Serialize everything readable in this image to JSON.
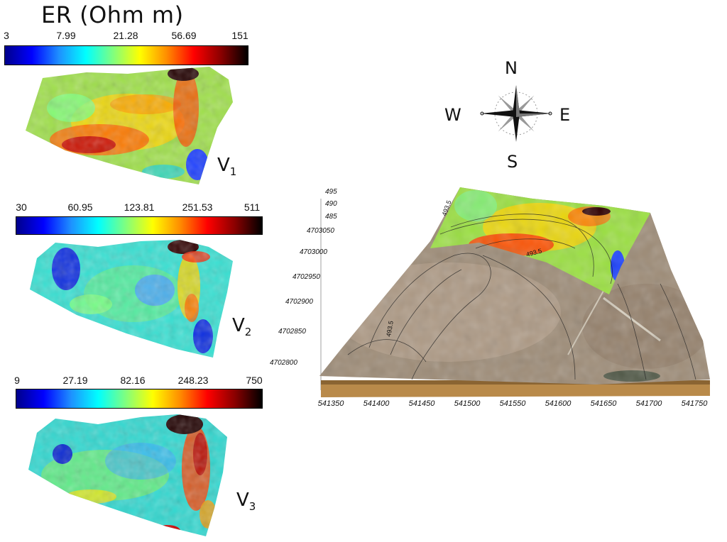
{
  "legend_title": "ER (Ohm m)",
  "panels": [
    {
      "ticks": [
        "3",
        "7.99",
        "21.28",
        "56.69",
        "151"
      ],
      "label": "V",
      "sub": "1"
    },
    {
      "ticks": [
        "30",
        "60.95",
        "123.81",
        "251.53",
        "511"
      ],
      "label": "V",
      "sub": "2"
    },
    {
      "ticks": [
        "9",
        "27.19",
        "82.16",
        "248.23",
        "750"
      ],
      "label": "V",
      "sub": "3"
    }
  ],
  "colormap": [
    "#00008b",
    "#0000ff",
    "#1e90ff",
    "#00ffff",
    "#7fff7f",
    "#ffff00",
    "#ff8c00",
    "#ff0000",
    "#8b0000",
    "#000000"
  ],
  "compass": {
    "n": "N",
    "s": "S",
    "e": "E",
    "w": "W"
  },
  "block3d": {
    "x_ticks": [
      "541350",
      "541400",
      "541450",
      "541500",
      "541550",
      "541600",
      "541650",
      "541700",
      "541750"
    ],
    "y_ticks": [
      "4703050",
      "4703000",
      "4702950",
      "4702900",
      "4702850",
      "4702800"
    ],
    "z_ticks": [
      "495",
      "490",
      "485"
    ],
    "contour_labels": [
      "493.5",
      "493.5",
      "493.5"
    ]
  }
}
